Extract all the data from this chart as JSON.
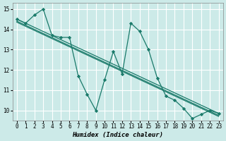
{
  "xlabel": "Humidex (Indice chaleur)",
  "xlim": [
    -0.5,
    23.5
  ],
  "ylim": [
    9.5,
    15.3
  ],
  "yticks": [
    10,
    11,
    12,
    13,
    14,
    15
  ],
  "xticks": [
    0,
    1,
    2,
    3,
    4,
    5,
    6,
    7,
    8,
    9,
    10,
    11,
    12,
    13,
    14,
    15,
    16,
    17,
    18,
    19,
    20,
    21,
    22,
    23
  ],
  "bg_color": "#cceae8",
  "grid_color": "#ffffff",
  "line_color": "#1a7a6a",
  "lines": [
    {
      "x": [
        0,
        1,
        2,
        3,
        4,
        5,
        6,
        7,
        8,
        9,
        10,
        11,
        12,
        13,
        14,
        15,
        16,
        17,
        18,
        19,
        20,
        21,
        22,
        23
      ],
      "y": [
        14.5,
        14.3,
        14.7,
        15.0,
        13.7,
        13.6,
        13.6,
        11.7,
        10.8,
        10.0,
        11.5,
        12.9,
        11.8,
        14.3,
        13.9,
        13.0,
        11.6,
        10.7,
        10.5,
        10.1,
        9.6,
        9.8,
        10.0,
        9.85
      ],
      "marker": true
    },
    {
      "x": [
        0,
        23
      ],
      "y": [
        14.5,
        9.85
      ],
      "marker": false
    },
    {
      "x": [
        0,
        23
      ],
      "y": [
        14.4,
        9.75
      ],
      "marker": false
    },
    {
      "x": [
        0,
        23
      ],
      "y": [
        14.35,
        9.7
      ],
      "marker": false
    }
  ]
}
